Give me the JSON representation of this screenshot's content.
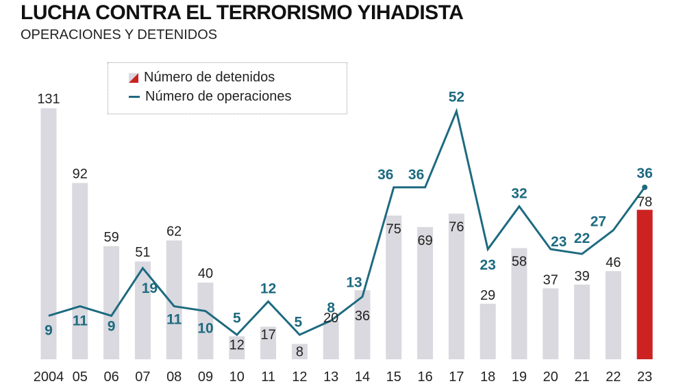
{
  "title": "LUCHA CONTRA EL TERRORISMO YIHADISTA",
  "subtitle": "OPERACIONES Y DETENIDOS",
  "colors": {
    "bar": "#d9d9df",
    "highlight_bar": "#cc2222",
    "line": "#1d6a80",
    "text": "#222222"
  },
  "chart_data": {
    "type": "bar",
    "title": "LUCHA CONTRA EL TERRORISMO YIHADISTA",
    "subtitle": "OPERACIONES Y DETENIDOS",
    "categories": [
      "2004",
      "05",
      "06",
      "07",
      "08",
      "09",
      "10",
      "11",
      "12",
      "13",
      "14",
      "15",
      "16",
      "17",
      "18",
      "19",
      "20",
      "21",
      "22",
      "23"
    ],
    "series": [
      {
        "name": "Número de detenidos",
        "type": "bar",
        "values": [
          131,
          92,
          59,
          51,
          62,
          40,
          12,
          17,
          8,
          20,
          36,
          75,
          69,
          76,
          29,
          58,
          37,
          39,
          46,
          78
        ]
      },
      {
        "name": "Número de operaciones",
        "type": "line",
        "values": [
          9,
          11,
          9,
          19,
          11,
          10,
          5,
          12,
          5,
          8,
          13,
          36,
          36,
          52,
          23,
          32,
          23,
          22,
          27,
          36
        ]
      }
    ],
    "legend": [
      "Número de detenidos",
      "Número de operaciones"
    ],
    "legend_position": "top-left",
    "highlight_category": "23",
    "grid": false
  }
}
